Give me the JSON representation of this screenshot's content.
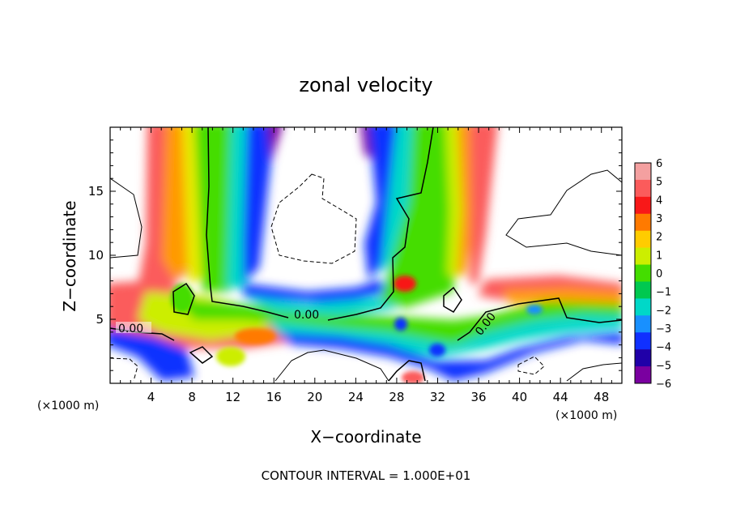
{
  "chart_data": {
    "type": "heatmap",
    "title": "zonal velocity",
    "xlabel": "X−coordinate",
    "ylabel": "Z−coordinate",
    "xlim": [
      0,
      50
    ],
    "ylim": [
      0,
      20
    ],
    "x_ticks": [
      4,
      8,
      12,
      16,
      20,
      24,
      28,
      32,
      36,
      40,
      44,
      48
    ],
    "y_ticks": [
      5,
      10,
      15
    ],
    "x_unit_left": "(×1000 m)",
    "x_unit_right": "(×1000 m)",
    "contour_interval_text": "CONTOUR INTERVAL = 1.000E+01",
    "contour_labels": [
      "0.00",
      "0.00",
      "0.00"
    ],
    "colorbar": {
      "levels": [
        6,
        5,
        4,
        3,
        2,
        1,
        0,
        -1,
        -2,
        -3,
        -4,
        -5,
        -6
      ],
      "labels": [
        "6",
        "5",
        "4",
        "3",
        "2",
        "1",
        "0",
        "−1",
        "−2",
        "−3",
        "−4",
        "−5",
        "−6"
      ],
      "colors": [
        "#f4a0a0",
        "#fb5b5b",
        "#f81818",
        "#ff7a00",
        "#ffcc00",
        "#ccee00",
        "#44dd00",
        "#00c850",
        "#00d8c8",
        "#1890ff",
        "#1030ff",
        "#2000a8",
        "#7a00a0"
      ]
    },
    "fields": [
      {
        "name": "left-plume",
        "value": 4,
        "x": [
          [
            4,
            8
          ],
          [
            7,
            10
          ],
          [
            5,
            9
          ],
          [
            4,
            8
          ]
        ],
        "z": [
          20,
          10,
          7,
          5
        ]
      },
      {
        "name": "left-plume-core",
        "value": 0,
        "x": [
          [
            8,
            10
          ],
          [
            9,
            11
          ],
          [
            9,
            12
          ]
        ],
        "z": [
          20,
          10,
          6
        ]
      },
      {
        "name": "left-plume-blue",
        "value": -4,
        "x": [
          [
            11,
            13
          ],
          [
            11.5,
            13.5
          ],
          [
            12,
            15
          ]
        ],
        "z": [
          20,
          10,
          7
        ]
      },
      {
        "name": "lower-layer",
        "value": 0,
        "x": [
          0,
          50
        ],
        "z": [
          4,
          7
        ]
      },
      {
        "name": "lower-blue",
        "value": -4,
        "x": [
          0,
          50
        ],
        "z": [
          3,
          4.5
        ]
      },
      {
        "name": "right-plume",
        "value": 0,
        "x": [
          [
            30,
            35
          ],
          [
            29,
            34
          ],
          [
            27,
            33
          ]
        ],
        "z": [
          20,
          10,
          5
        ]
      },
      {
        "name": "right-plume-red",
        "value": 4,
        "x": [
          [
            34,
            36
          ],
          [
            34,
            36
          ],
          [
            35,
            38
          ]
        ],
        "z": [
          20,
          10,
          7
        ]
      },
      {
        "name": "right-plume-blue",
        "value": -5,
        "x": [
          [
            26,
            29
          ],
          [
            26,
            28
          ],
          [
            27,
            29
          ]
        ],
        "z": [
          20,
          10,
          6
        ]
      }
    ]
  }
}
